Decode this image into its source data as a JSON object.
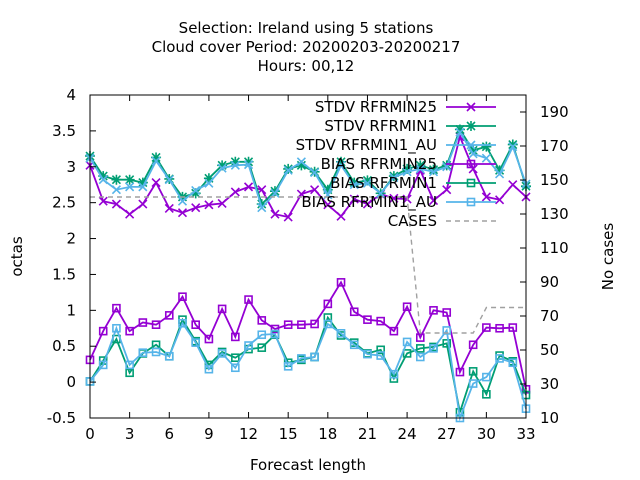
{
  "chart_data": {
    "type": "line",
    "title_lines": [
      "Selection: Ireland using     5 stations",
      "Cloud cover   Period: 20200203-20200217",
      "Hours:  00,12"
    ],
    "xlabel": "Forecast length",
    "ylabel": "octas",
    "y2label": "No cases",
    "xlim": [
      0,
      33
    ],
    "ylim": [
      -0.5,
      4
    ],
    "y2lim": [
      10,
      200
    ],
    "xticks": [
      0,
      3,
      6,
      9,
      12,
      15,
      18,
      21,
      24,
      27,
      30,
      33
    ],
    "yticks": [
      -0.5,
      0,
      0.5,
      1,
      1.5,
      2,
      2.5,
      3,
      3.5,
      4
    ],
    "y2ticks": [
      10,
      30,
      50,
      70,
      90,
      110,
      130,
      150,
      170,
      190
    ],
    "legend_position": "top-right",
    "x": [
      0,
      1,
      2,
      3,
      4,
      5,
      6,
      7,
      8,
      9,
      10,
      11,
      12,
      13,
      14,
      15,
      16,
      17,
      18,
      19,
      20,
      21,
      22,
      23,
      24,
      25,
      26,
      27,
      28,
      29,
      30,
      31,
      32,
      33
    ],
    "series": [
      {
        "name": "STDV RFRMIN25",
        "color": "#9400d3",
        "marker": "x",
        "axis": "y",
        "values": [
          3.02,
          2.52,
          2.48,
          2.34,
          2.48,
          2.78,
          2.42,
          2.36,
          2.43,
          2.47,
          2.49,
          2.65,
          2.72,
          2.68,
          2.34,
          2.3,
          2.62,
          2.68,
          2.47,
          2.31,
          2.55,
          2.48,
          2.62,
          2.56,
          2.55,
          2.95,
          2.53,
          2.68,
          3.42,
          2.97,
          2.58,
          2.54,
          2.75,
          2.58
        ]
      },
      {
        "name": "STDV RFRMIN1",
        "color": "#009e73",
        "marker": "star",
        "axis": "y",
        "values": [
          3.15,
          2.87,
          2.82,
          2.82,
          2.78,
          3.13,
          2.83,
          2.58,
          2.63,
          2.84,
          3.02,
          3.07,
          3.07,
          2.48,
          2.66,
          2.97,
          3.02,
          2.93,
          2.68,
          3.07,
          2.78,
          2.81,
          2.63,
          2.87,
          2.97,
          3.02,
          2.96,
          3.02,
          3.52,
          3.23,
          3.28,
          2.95,
          3.31,
          2.73
        ]
      },
      {
        "name": "STDV RFRMIN1_AU",
        "color": "#56b4e9",
        "marker": "x",
        "axis": "y",
        "values": [
          3.12,
          2.82,
          2.68,
          2.72,
          2.72,
          3.08,
          2.82,
          2.52,
          2.67,
          2.77,
          2.98,
          3.02,
          3.03,
          2.43,
          2.63,
          2.95,
          3.07,
          2.92,
          2.61,
          3.02,
          2.75,
          2.77,
          2.63,
          2.85,
          2.93,
          2.97,
          2.93,
          3.0,
          3.48,
          3.18,
          3.12,
          2.9,
          3.28,
          2.76
        ]
      },
      {
        "name": "BIAS RFRMIN25",
        "color": "#9400d3",
        "marker": "square",
        "axis": "y",
        "values": [
          0.31,
          0.71,
          1.03,
          0.71,
          0.83,
          0.8,
          0.93,
          1.19,
          0.8,
          0.6,
          1.02,
          0.63,
          1.15,
          0.86,
          0.74,
          0.8,
          0.8,
          0.81,
          1.09,
          1.39,
          0.98,
          0.87,
          0.85,
          0.71,
          1.05,
          0.62,
          1.0,
          0.97,
          0.14,
          0.52,
          0.76,
          0.75,
          0.76,
          -0.1
        ]
      },
      {
        "name": "BIAS RFRMIN1",
        "color": "#009e73",
        "marker": "square",
        "axis": "y",
        "values": [
          0.01,
          0.3,
          0.6,
          0.13,
          0.4,
          0.52,
          0.36,
          0.87,
          0.57,
          0.24,
          0.42,
          0.34,
          0.46,
          0.48,
          0.66,
          0.27,
          0.31,
          0.35,
          0.9,
          0.65,
          0.55,
          0.4,
          0.45,
          0.05,
          0.4,
          0.47,
          0.49,
          0.54,
          -0.42,
          0.15,
          -0.17,
          0.37,
          0.29,
          -0.18
        ]
      },
      {
        "name": "BIAS RFRMIN1_AU",
        "color": "#56b4e9",
        "marker": "square",
        "axis": "y",
        "values": [
          0.01,
          0.24,
          0.75,
          0.24,
          0.41,
          0.42,
          0.36,
          0.82,
          0.55,
          0.18,
          0.4,
          0.2,
          0.51,
          0.66,
          0.67,
          0.22,
          0.33,
          0.35,
          0.81,
          0.68,
          0.52,
          0.39,
          0.37,
          0.11,
          0.56,
          0.35,
          0.47,
          0.72,
          -0.5,
          -0.02,
          0.07,
          0.33,
          0.27,
          -0.37
        ]
      },
      {
        "name": "CASES",
        "color": "#a0a0a0",
        "marker": "none",
        "dashed": true,
        "axis": "y2",
        "values": [
          140,
          140,
          140,
          140,
          140,
          140,
          140,
          140,
          140,
          140,
          140,
          140,
          140,
          140,
          140,
          140,
          140,
          140,
          140,
          140,
          140,
          140,
          140,
          140,
          140,
          60,
          60,
          60,
          60,
          60,
          75,
          75,
          75,
          75
        ]
      }
    ]
  }
}
